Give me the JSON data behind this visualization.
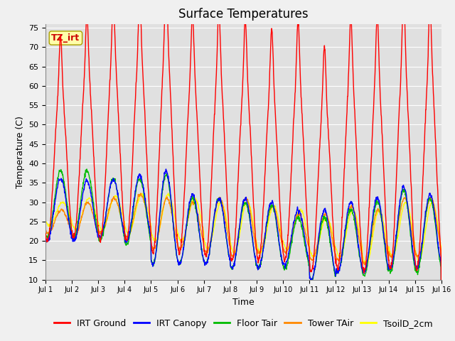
{
  "title": "Surface Temperatures",
  "xlabel": "Time",
  "ylabel": "Temperature (C)",
  "ylim": [
    10,
    76
  ],
  "yticks": [
    10,
    15,
    20,
    25,
    30,
    35,
    40,
    45,
    50,
    55,
    60,
    65,
    70,
    75
  ],
  "xlim_days": [
    0,
    15
  ],
  "xtick_labels": [
    "Jul 1",
    "Jul 2",
    "Jul 3",
    "Jul 4",
    "Jul 5",
    "Jul 6",
    "Jul 7",
    "Jul 8",
    "Jul 9",
    "Jul 10",
    "Jul 11",
    "Jul 12",
    "Jul 13",
    "Jul 14",
    "Jul 15",
    "Jul 16"
  ],
  "series_colors": {
    "IRT Ground": "#ff0000",
    "IRT Canopy": "#0000ff",
    "Floor Tair": "#00bb00",
    "Tower TAir": "#ff8800",
    "TsoilD_2cm": "#ffff00"
  },
  "legend_labels": [
    "IRT Ground",
    "IRT Canopy",
    "Floor Tair",
    "Tower TAir",
    "TsoilD_2cm"
  ],
  "annotation_text": "TZ_irt",
  "annotation_color": "#cc0000",
  "annotation_bg": "#ffffaa",
  "fig_bg": "#f0f0f0",
  "plot_bg": "#e0e0e0",
  "title_fontsize": 12,
  "axis_fontsize": 9,
  "legend_fontsize": 9
}
